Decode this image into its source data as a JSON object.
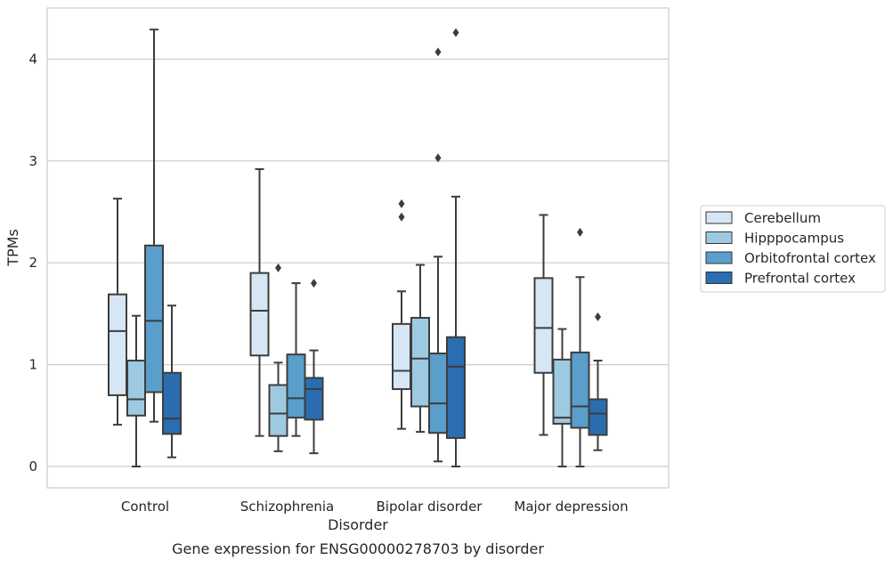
{
  "chart_data": {
    "type": "box",
    "title": "Gene expression for ENSG00000278703 by disorder",
    "xlabel": "Disorder",
    "ylabel": "TPMs",
    "ylim": [
      -0.2,
      4.5
    ],
    "yticks": [
      0,
      1,
      2,
      3,
      4
    ],
    "grid": "horizontal",
    "legend_position": "right",
    "categories": [
      "Control",
      "Schizophrenia",
      "Bipolar disorder",
      "Major depression"
    ],
    "series": [
      {
        "name": "Cerebellum",
        "color": "#d6e6f4",
        "boxes": [
          {
            "whisker_low": 0.41,
            "q1": 0.7,
            "median": 1.33,
            "q3": 1.69,
            "whisker_high": 2.63,
            "outliers": []
          },
          {
            "whisker_low": 0.3,
            "q1": 1.09,
            "median": 1.53,
            "q3": 1.9,
            "whisker_high": 2.92,
            "outliers": []
          },
          {
            "whisker_low": 0.37,
            "q1": 0.76,
            "median": 0.94,
            "q3": 1.4,
            "whisker_high": 1.72,
            "outliers": [
              2.45,
              2.58
            ]
          },
          {
            "whisker_low": 0.31,
            "q1": 0.92,
            "median": 1.36,
            "q3": 1.85,
            "whisker_high": 2.47,
            "outliers": []
          }
        ]
      },
      {
        "name": "Hipppocampus",
        "color": "#9ecae1",
        "boxes": [
          {
            "whisker_low": 0.0,
            "q1": 0.5,
            "median": 0.66,
            "q3": 1.04,
            "whisker_high": 1.48,
            "outliers": []
          },
          {
            "whisker_low": 0.15,
            "q1": 0.3,
            "median": 0.52,
            "q3": 0.8,
            "whisker_high": 1.02,
            "outliers": [
              1.95
            ]
          },
          {
            "whisker_low": 0.34,
            "q1": 0.59,
            "median": 1.06,
            "q3": 1.46,
            "whisker_high": 1.98,
            "outliers": []
          },
          {
            "whisker_low": 0.0,
            "q1": 0.42,
            "median": 0.48,
            "q3": 1.05,
            "whisker_high": 1.35,
            "outliers": []
          }
        ]
      },
      {
        "name": "Orbitofrontal cortex",
        "color": "#5a9ecb",
        "boxes": [
          {
            "whisker_low": 0.44,
            "q1": 0.73,
            "median": 1.43,
            "q3": 2.17,
            "whisker_high": 4.29,
            "outliers": []
          },
          {
            "whisker_low": 0.3,
            "q1": 0.48,
            "median": 0.67,
            "q3": 1.1,
            "whisker_high": 1.8,
            "outliers": []
          },
          {
            "whisker_low": 0.05,
            "q1": 0.33,
            "median": 0.62,
            "q3": 1.11,
            "whisker_high": 2.06,
            "outliers": [
              3.03,
              4.07
            ]
          },
          {
            "whisker_low": 0.0,
            "q1": 0.38,
            "median": 0.59,
            "q3": 1.12,
            "whisker_high": 1.86,
            "outliers": [
              2.3
            ]
          }
        ]
      },
      {
        "name": "Prefrontal cortex",
        "color": "#2a6db0",
        "boxes": [
          {
            "whisker_low": 0.09,
            "q1": 0.32,
            "median": 0.47,
            "q3": 0.92,
            "whisker_high": 1.58,
            "outliers": []
          },
          {
            "whisker_low": 0.13,
            "q1": 0.46,
            "median": 0.76,
            "q3": 0.87,
            "whisker_high": 1.14,
            "outliers": [
              1.8
            ]
          },
          {
            "whisker_low": 0.0,
            "q1": 0.28,
            "median": 0.98,
            "q3": 1.27,
            "whisker_high": 2.65,
            "outliers": [
              4.26
            ]
          },
          {
            "whisker_low": 0.16,
            "q1": 0.31,
            "median": 0.52,
            "q3": 0.66,
            "whisker_high": 1.04,
            "outliers": [
              1.47
            ]
          }
        ]
      }
    ]
  }
}
